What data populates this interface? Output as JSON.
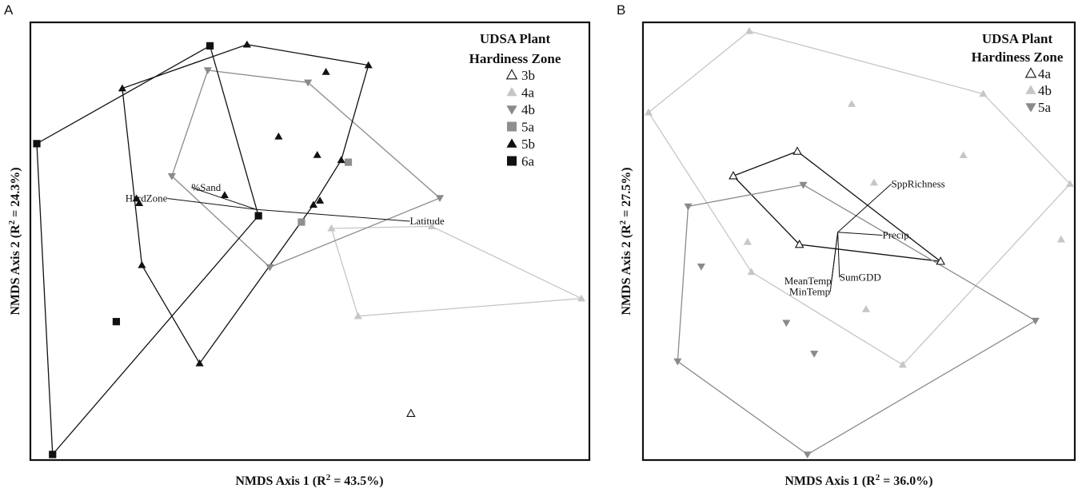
{
  "chart_data": [
    {
      "panel": "A",
      "type": "scatter",
      "xlabel": "NMDS Axis 1 (R",
      "xlabel_sup": "2",
      "xlabel_end": " = 43.5%)",
      "ylabel": "NMDS Axis 2 (R",
      "ylabel_sup": "2",
      "ylabel_end": " = 24.3%)",
      "xlim": [
        0,
        100
      ],
      "ylim": [
        0,
        100
      ],
      "grid": false,
      "legend_placement": "top-right",
      "legend_title_line1": "UDSA Plant",
      "legend_title_line2": "Hardiness Zone",
      "series": [
        {
          "name": "3b",
          "marker": "triangle-up-open",
          "color": "#111111",
          "hull": false,
          "points": [
            [
              68.7,
              9.7
            ]
          ]
        },
        {
          "name": "4a",
          "marker": "triangle-up",
          "color": "#c6c6c6",
          "hull": true,
          "points": [
            [
              54.1,
              53.6
            ],
            [
              72.5,
              54.1
            ],
            [
              100,
              37
            ],
            [
              59,
              32.8
            ]
          ]
        },
        {
          "name": "4b",
          "marker": "triangle-down",
          "color": "#8a8a8a",
          "hull": true,
          "points": [
            [
              31.4,
              91.1
            ],
            [
              49.8,
              88.2
            ],
            [
              74,
              60.8
            ],
            [
              42.8,
              44.4
            ],
            [
              24.8,
              66
            ]
          ]
        },
        {
          "name": "5a",
          "marker": "square",
          "color": "#8f8f8f",
          "hull": false,
          "points": [
            [
              57.2,
              69.3
            ],
            [
              48.6,
              55.1
            ]
          ]
        },
        {
          "name": "5b",
          "marker": "triangle-up",
          "color": "#111111",
          "hull": true,
          "points": [
            [
              38.6,
              97.2
            ],
            [
              60.9,
              92.3
            ],
            [
              55.9,
              69.8
            ],
            [
              50.8,
              59.2
            ],
            [
              29.9,
              21.6
            ],
            [
              19.3,
              44.9
            ],
            [
              15.7,
              86.8
            ]
          ],
          "interior": [
            [
              53.1,
              90.7
            ],
            [
              44.4,
              75.4
            ],
            [
              51.5,
              71
            ],
            [
              34.5,
              61.5
            ],
            [
              18.3,
              60.7
            ],
            [
              52,
              60.2
            ],
            [
              18.8,
              59.6
            ]
          ]
        },
        {
          "name": "6a",
          "marker": "square",
          "color": "#111111",
          "hull": true,
          "points": [
            [
              31.8,
              96.9
            ],
            [
              40.7,
              56.6
            ],
            [
              2.9,
              0
            ],
            [
              0,
              73.7
            ]
          ],
          "interior": [
            [
              14.6,
              31.5
            ]
          ]
        }
      ],
      "vectors": [
        {
          "label": "HardZone",
          "end": [
            24,
            60.7
          ],
          "label_anchor": "end"
        },
        {
          "label": "%Sand",
          "end": [
            28.4,
            63.3
          ],
          "label_anchor": "start"
        },
        {
          "label": "Latitude",
          "end": [
            68.5,
            55.3
          ],
          "label_anchor": "start"
        }
      ],
      "vector_origin": [
        40.3,
        58.1
      ]
    },
    {
      "panel": "B",
      "type": "scatter",
      "xlabel": "NMDS Axis 1 (R",
      "xlabel_sup": "2",
      "xlabel_end": " = 36.0%)",
      "ylabel": "NMDS Axis 2 (R",
      "ylabel_sup": "2",
      "ylabel_end": " = 27.5%)",
      "xlim": [
        0,
        100
      ],
      "ylim": [
        0,
        100
      ],
      "grid": false,
      "legend_placement": "top-right",
      "legend_title_line1": "UDSA Plant",
      "legend_title_line2": "Hardiness Zone",
      "series": [
        {
          "name": "4a",
          "marker": "triangle-up-open",
          "color": "#111111",
          "hull": true,
          "points": [
            [
              35.3,
              71.6
            ],
            [
              69.3,
              45.6
            ],
            [
              35.8,
              49.6
            ],
            [
              20.1,
              65.8
            ]
          ]
        },
        {
          "name": "4b",
          "marker": "triangle-up",
          "color": "#c6c6c6",
          "hull": true,
          "points": [
            [
              23.9,
              100
            ],
            [
              79.4,
              85.2
            ],
            [
              100,
              63.9
            ],
            [
              60.3,
              21.2
            ],
            [
              24.4,
              43.1
            ],
            [
              0,
              80.8
            ]
          ],
          "interior": [
            [
              48.2,
              82.8
            ],
            [
              53.5,
              64.2
            ],
            [
              74.7,
              70.7
            ],
            [
              97.9,
              50.8
            ],
            [
              23.5,
              50.2
            ],
            [
              51.6,
              34.3
            ]
          ]
        },
        {
          "name": "5a",
          "marker": "triangle-down",
          "color": "#8a8a8a",
          "hull": true,
          "points": [
            [
              36.7,
              63.7
            ],
            [
              91.8,
              31.6
            ],
            [
              37.7,
              0
            ],
            [
              6.9,
              22
            ],
            [
              9.4,
              58.6
            ]
          ],
          "interior": [
            [
              12.5,
              44.4
            ],
            [
              32.7,
              31.1
            ],
            [
              39.3,
              23.8
            ]
          ]
        }
      ],
      "vectors": [
        {
          "label": "SppRichness",
          "end": [
            57.6,
            63.9
          ],
          "label_anchor": "start"
        },
        {
          "label": "Precip.",
          "end": [
            55.5,
            51.8
          ],
          "label_anchor": "start"
        },
        {
          "label": "SumGDD",
          "end": [
            45.3,
            41.8
          ],
          "label_anchor": "start"
        },
        {
          "label": "MeanTemp",
          "end": [
            43.4,
            40.9
          ],
          "label_anchor": "end"
        },
        {
          "label": "MinTemp",
          "end": [
            43.1,
            38.4
          ],
          "label_anchor": "end"
        }
      ],
      "vector_origin": [
        44.9,
        52.5
      ]
    }
  ]
}
